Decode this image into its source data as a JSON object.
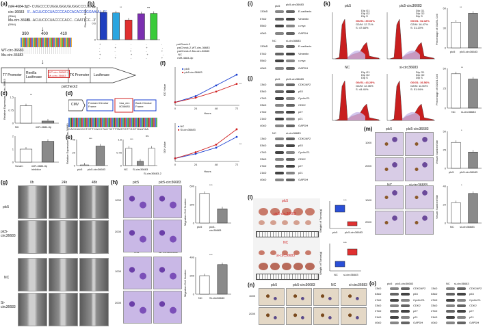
{
  "panels": {
    "a": {
      "label": "(a)",
      "mir_label": "miR-4684-3p",
      "mir_seq": "3'- CUGCCCCUGGUGGUGUGGCCCUUAG",
      "wt_label": "circ-36683",
      "wt_seq": "5'...ACUUCCCUACCCCACCACACCCGGAAUU...3'",
      "rna": "(RNA)",
      "mu_label": "Mu-circ-36683",
      "mu_seq": "5'...ACUUCCCUACCCCACC...CAATTCC...3'",
      "dna": "(DNA)",
      "ruler": [
        "390",
        "400",
        "410"
      ],
      "wt_row": "WT-circ-36683",
      "mu_row": "Mu-circ-36683",
      "construct": [
        "T7 Promoter",
        "Renilla Luciferase",
        "WT-circ-36683 / Mu-circ-36683",
        "TK Promoter",
        "Luciferase"
      ],
      "plasmid": "psiCheck2"
    },
    "b": {
      "label": "(b)",
      "ylabel": "Rluc/Fluc Ratio",
      "rows": [
        "psiCheck-2",
        "psiCheck-2-WT-circ-36683",
        "psiCheck-2-Mu-circ-36683",
        "NC",
        "miR-4684-3p"
      ],
      "marks": [
        "+",
        "-",
        "-"
      ],
      "sig": [
        "**",
        "ns"
      ]
    },
    "c": {
      "label": "(c)",
      "ylabel": "Relative Expression of circ-36683",
      "top_cats": [
        "NC",
        "miR-4684-3p"
      ],
      "bottom_cats": [
        "Scram",
        "miR-4684-3p inhibitor"
      ],
      "sig": "**"
    },
    "d": {
      "label": "(d)",
      "parts": [
        "CMV",
        "Forward Circular Frame",
        "hsa_circ 0036683",
        "Back Circular Frame"
      ],
      "seq": "CAGCACGCTGTTCACCTACTGTTTAGTGTTGGTGAATAA"
    },
    "e": {
      "label": "(e)",
      "ylabel": "Relative Expression of circ-36683",
      "left_cats": [
        "plc5",
        "plc5-circ36683"
      ],
      "right_cats": [
        "NC",
        "Si-circ36683",
        "Si-circ36683-2"
      ],
      "sig": [
        "***",
        "***",
        "ns"
      ]
    },
    "f": {
      "label": "(f)",
      "ylabel": "OD Value",
      "xlabel": "Hours",
      "ticks": [
        "0",
        "24",
        "48",
        "72"
      ],
      "top_legend": [
        "plc5",
        "plc5-circ36683"
      ],
      "bottom_legend": [
        "NC",
        "Si-circ36683"
      ],
      "sig": "**"
    },
    "g": {
      "label": "(g)",
      "times": [
        "0h",
        "24h",
        "48h"
      ],
      "rows": [
        "plc5",
        "plc5-circ36683",
        "NC",
        "Si-circ36683"
      ]
    },
    "h": {
      "label": "(h)",
      "cols_top": [
        "plc5",
        "plc5-circ36683"
      ],
      "cols_bottom": [
        "NC",
        "Si-circ36683"
      ],
      "mag": [
        "100X",
        "200X"
      ],
      "bar_ylabel": "Migration Cell Number",
      "bar_cats_top": [
        "plc5",
        "plc5-circ36683"
      ],
      "bar_cats_bottom": [
        "NC",
        "Si-circ36683"
      ],
      "sig": "***"
    },
    "i": {
      "label": "(i)",
      "header_top": [
        "plc5",
        "plc5-circ36683"
      ],
      "header_bottom": [
        "NC",
        "si-circ36683"
      ],
      "proteins": [
        "E-cadherin",
        "Vimentin",
        "c-myc",
        "GAPDH"
      ],
      "kda": [
        "130kD",
        "57kD",
        "55kD",
        "40kD"
      ]
    },
    "j": {
      "label": "(j)",
      "header_top": [
        "plc5",
        "plc5-circ36683"
      ],
      "header_bottom": [
        "NC",
        "si-circ36683"
      ],
      "proteins": [
        "CDK2AP2",
        "p53",
        "Cyclin E1",
        "CDK2",
        "p27",
        "p21",
        "GAPDH"
      ],
      "kda": [
        "13kD",
        "53kD",
        "47kD",
        "33kD",
        "27kD",
        "21kD",
        "40kD"
      ]
    },
    "k": {
      "label": "(k)",
      "plots": [
        {
          "title": "plc5",
          "g0g1": "G0/G1: 39.03%",
          "g2m": "G2/M: 12.71%",
          "s": "S: 47.68%"
        },
        {
          "title": "plc5-circ36683",
          "g0g1": "G0/G1: 52.32%",
          "g2m": "G2/M: 16.47%",
          "s": "S: 31.20%"
        },
        {
          "title": "NC",
          "g0g1": "G0/G1: 43.25%",
          "g2m": "G2/M: 12.35%",
          "s": "S: 44.40%"
        },
        {
          "title": "si-circ36683",
          "g0g1": "G0/G1: 36.56%",
          "g2m": "G2/M: 11.50%",
          "s": "S: 51.94%"
        }
      ],
      "legend": [
        "Dip G1",
        "Dip G2",
        "Dip S"
      ],
      "bar_ylabel": "Percentage of G0/G1 Cell",
      "bar_cats_top": [
        "plc5",
        "plc5-circ36683"
      ],
      "bar_cats_bottom": [
        "NC",
        "si-circ36683"
      ],
      "sig": "**"
    },
    "l": {
      "label": "(l)",
      "group_labels": [
        "plc5",
        "plc5-circ36683",
        "NC",
        "si-circ36683"
      ],
      "ylabel": "Weight of Tumor(g)",
      "cats_top": [
        "plc5",
        "plc5-circ36683"
      ],
      "cats_bottom": [
        "NC",
        "si-circ36683"
      ],
      "sig": "***"
    },
    "m": {
      "label": "(m)",
      "cols_top": [
        "plc5",
        "plc5-circ36683"
      ],
      "cols_bottom": [
        "NC",
        "si-circ36683"
      ],
      "mag": [
        "100X",
        "200X"
      ],
      "bar_ylabel": "Vessel Number/Site",
      "sig": "*"
    },
    "n": {
      "label": "(n)",
      "cols": [
        "plc5",
        "plc5-circ36683",
        "NC",
        "si-circ36683"
      ],
      "mag": [
        "100X",
        "200X"
      ]
    },
    "o": {
      "label": "(o)",
      "header_left": [
        "plc5",
        "plc5-circ36683"
      ],
      "header_right": [
        "NC",
        "si-circ36683"
      ],
      "proteins": [
        "CDK2AP2",
        "p53",
        "Cyclin E1",
        "CDK2",
        "p27",
        "p21",
        "GAPDH"
      ],
      "kda": [
        "13kD",
        "53kD",
        "47kD",
        "33kD",
        "27kD",
        "21kD",
        "40kD"
      ]
    }
  },
  "chart_data": [
    {
      "type": "bar",
      "panel": "b",
      "categories": [
        "1",
        "2",
        "3",
        "4",
        "5"
      ],
      "values": [
        1.0,
        0.98,
        0.72,
        0.95,
        0.96
      ],
      "ylim": [
        0,
        1.2
      ],
      "colors": [
        "#1f3fbf",
        "#2aa5e0",
        "#e03030",
        "#7b2fb0",
        "#3acb3a"
      ]
    },
    {
      "type": "bar",
      "panel": "c-top",
      "categories": [
        "NC",
        "miR-4684-3p"
      ],
      "values": [
        1.0,
        0.12
      ],
      "ylim": [
        0,
        1.5
      ]
    },
    {
      "type": "bar",
      "panel": "c-bottom",
      "categories": [
        "Scram",
        "miR-4684-3p inhibitor"
      ],
      "values": [
        1.0,
        1.6
      ],
      "ylim": [
        0,
        2
      ]
    },
    {
      "type": "bar",
      "panel": "e-left",
      "categories": [
        "plc5",
        "plc5-circ36683"
      ],
      "values": [
        1,
        30
      ],
      "ylim": [
        0,
        40
      ]
    },
    {
      "type": "bar",
      "panel": "e-right",
      "categories": [
        "NC",
        "Si-circ36683",
        "Si-circ36683-2"
      ],
      "values": [
        1.0,
        0.25,
        1.0
      ],
      "ylim": [
        0,
        1.5
      ]
    },
    {
      "type": "line",
      "panel": "f-top",
      "x": [
        0,
        24,
        48,
        72
      ],
      "series": [
        {
          "name": "plc5",
          "values": [
            0.2,
            0.6,
            1.3,
            2.0
          ]
        },
        {
          "name": "plc5-circ36683",
          "values": [
            0.2,
            0.5,
            0.9,
            1.4
          ]
        }
      ],
      "ylim": [
        0,
        2.5
      ]
    },
    {
      "type": "line",
      "panel": "f-bottom",
      "x": [
        0,
        24,
        48,
        72
      ],
      "series": [
        {
          "name": "NC",
          "values": [
            0.2,
            0.5,
            0.9,
            1.6
          ]
        },
        {
          "name": "Si-circ36683",
          "values": [
            0.2,
            0.6,
            1.1,
            2.1
          ]
        }
      ],
      "ylim": [
        0,
        2.5
      ]
    },
    {
      "type": "bar",
      "panel": "h-top",
      "categories": [
        "plc5",
        "plc5-circ36683"
      ],
      "values": [
        480,
        230
      ],
      "ylim": [
        0,
        600
      ]
    },
    {
      "type": "bar",
      "panel": "h-bottom",
      "categories": [
        "NC",
        "Si-circ36683"
      ],
      "values": [
        200,
        320
      ],
      "ylim": [
        0,
        400
      ]
    },
    {
      "type": "bar",
      "panel": "k-top",
      "categories": [
        "plc5",
        "plc5-circ36683"
      ],
      "values": [
        39.03,
        52.32
      ],
      "ylim": [
        0,
        60
      ]
    },
    {
      "type": "bar",
      "panel": "k-bottom",
      "categories": [
        "NC",
        "si-circ36683"
      ],
      "values": [
        43.25,
        36.56
      ],
      "ylim": [
        0,
        50
      ]
    },
    {
      "type": "bar",
      "panel": "m-top",
      "categories": [
        "plc5",
        "plc5-circ36683"
      ],
      "values": [
        35,
        22
      ],
      "ylim": [
        0,
        50
      ]
    },
    {
      "type": "bar",
      "panel": "m-bottom",
      "categories": [
        "NC",
        "si-circ36683"
      ],
      "values": [
        22,
        32
      ],
      "ylim": [
        0,
        40
      ]
    }
  ]
}
